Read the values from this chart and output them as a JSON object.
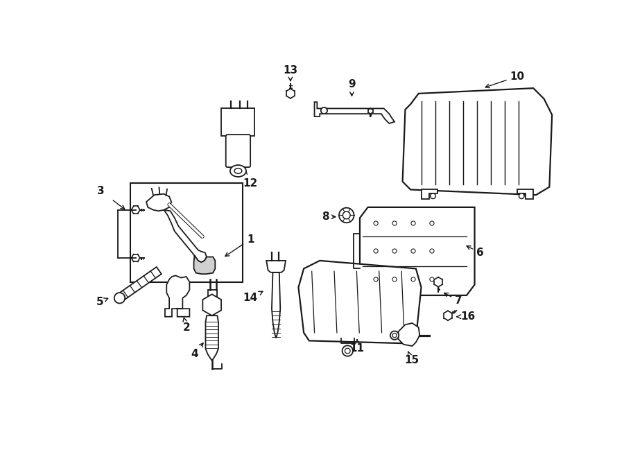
{
  "bg_color": "#ffffff",
  "line_color": "#1a1a1a",
  "label_fontsize": 11,
  "fig_w": 9.0,
  "fig_h": 6.62,
  "dpi": 100
}
